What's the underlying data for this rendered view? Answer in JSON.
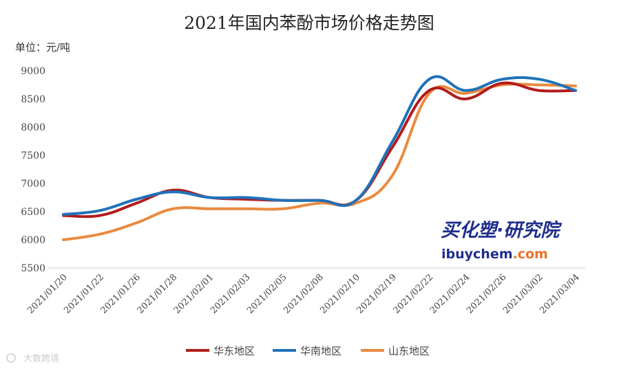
{
  "chart_data": {
    "type": "line",
    "title": "2021年国内苯酚市场价格走势图",
    "ylabel": "单位：元/吨",
    "xlabel": "",
    "ylim": [
      5500,
      9000
    ],
    "yticks": [
      5500,
      6000,
      6500,
      7000,
      7500,
      8000,
      8500,
      9000
    ],
    "categories": [
      "2021/01/20",
      "2021/01/22",
      "2021/01/26",
      "2021/01/28",
      "2021/02/01",
      "2021/02/03",
      "2021/02/05",
      "2021/02/08",
      "2021/02/10",
      "2021/02/19",
      "2021/02/22",
      "2021/02/24",
      "2021/02/26",
      "2021/03/02",
      "2021/03/04"
    ],
    "grid": false,
    "legend_position": "bottom",
    "series": [
      {
        "name": "华东地区",
        "color": "#b01c1c",
        "values": [
          6430,
          6430,
          6650,
          6880,
          6750,
          6720,
          6700,
          6700,
          6700,
          7650,
          8650,
          8500,
          8780,
          8650,
          8650
        ]
      },
      {
        "name": "华南地区",
        "color": "#1f72b8",
        "values": [
          6450,
          6520,
          6720,
          6850,
          6750,
          6750,
          6700,
          6700,
          6700,
          7750,
          8850,
          8650,
          8850,
          8850,
          8650
        ]
      },
      {
        "name": "山东地区",
        "color": "#ea8a3e",
        "values": [
          6000,
          6100,
          6300,
          6550,
          6550,
          6550,
          6550,
          6650,
          6650,
          7150,
          8600,
          8600,
          8750,
          8750,
          8730
        ]
      }
    ]
  },
  "watermark": {
    "cn": "买化塑·研究院",
    "en_a": "ibuychem",
    "en_b": ".com",
    "corner": "大数跨境",
    "en_a_color": "#1f2e8c",
    "en_b_color": "#e8722a"
  }
}
